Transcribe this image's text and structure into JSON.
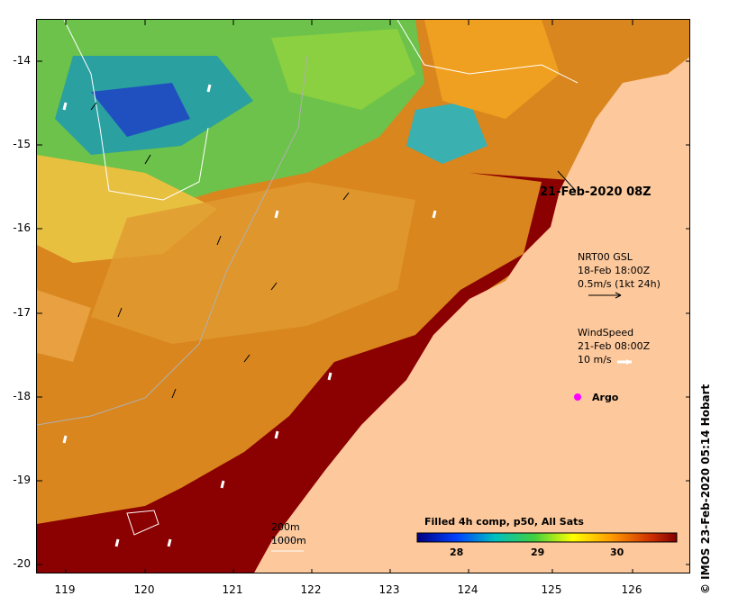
{
  "map": {
    "date_label": "21-Feb-2020 08Z",
    "lat_ticks": [
      "-14",
      "-15",
      "-16",
      "-17",
      "-18",
      "-19",
      "-20"
    ],
    "lon_ticks": [
      "119",
      "120",
      "121",
      "122",
      "123",
      "124",
      "125",
      "126"
    ],
    "colors": {
      "land": "#fcc89c",
      "hot": "#8b0000",
      "warm": "#cc6a00",
      "mid": "#e8a33a",
      "cool": "#3aa84a",
      "cold": "#1c3fb0"
    }
  },
  "legend": {
    "current": {
      "line1": "NRT00 GSL",
      "line2": "18-Feb 18:00Z",
      "line3": "0.5m/s (1kt 24h)"
    },
    "wind": {
      "line1": "WindSpeed",
      "line2": "21-Feb 08:00Z",
      "line3": "10 m/s"
    },
    "argo": "Argo",
    "depth": {
      "line1": "200m",
      "line2": "1000m"
    },
    "colorbar": {
      "title": "Filled 4h comp, p50, All Sats",
      "ticks": [
        "28",
        "29",
        "30"
      ]
    }
  },
  "credit": "© IMOS 23-Feb-2020 05:14 Hobart"
}
